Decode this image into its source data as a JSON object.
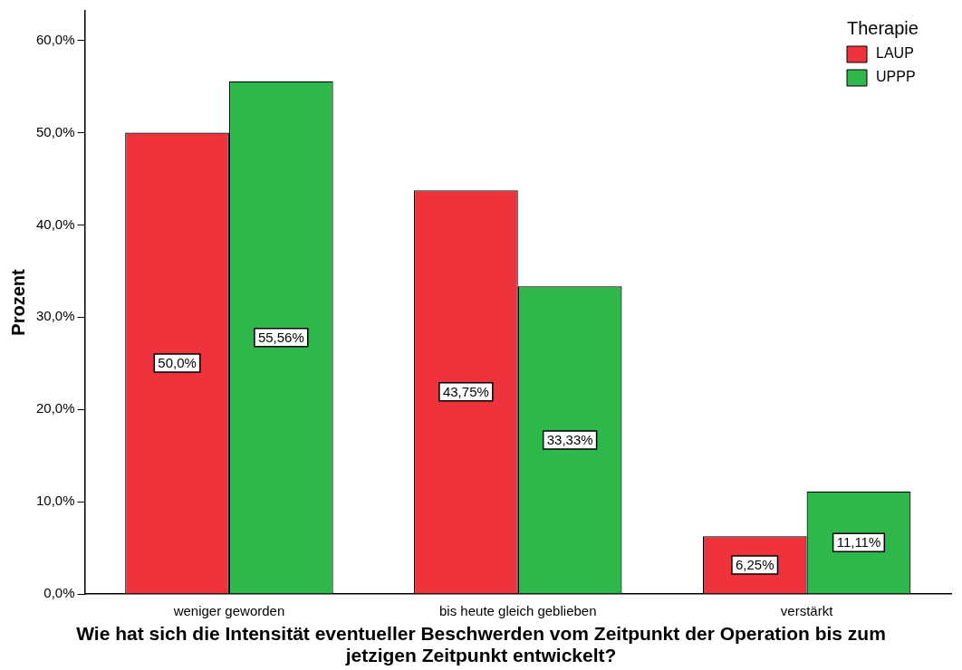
{
  "chart_data": {
    "type": "bar",
    "xlabel": "Wie hat sich die Intensität eventueller Beschwerden vom Zeitpunkt der Operation bis zum jetzigen Zeitpunkt entwickelt?",
    "ylabel": "Prozent",
    "legend_title": "Therapie",
    "legend": "top right",
    "categories": [
      "weniger geworden",
      "bis heute gleich geblieben",
      "verstärkt"
    ],
    "series": [
      {
        "name": "LAUP",
        "color": "#ef333c",
        "values": [
          50,
          43.75,
          6.25
        ],
        "value_labels": [
          "50,0%",
          "43,75%",
          "6,25%"
        ]
      },
      {
        "name": "UPPP",
        "color": "#2eb84b",
        "values": [
          55.56,
          33.33,
          11.11
        ],
        "value_labels": [
          "55,56%",
          "33,33%",
          "11,11%"
        ]
      }
    ],
    "ylim": [
      0,
      63.2
    ],
    "yticks": [
      {
        "value": 0,
        "label": "0,0%"
      },
      {
        "value": 10,
        "label": "10,0%"
      },
      {
        "value": 20,
        "label": "20,0%"
      },
      {
        "value": 30,
        "label": "30,0%"
      },
      {
        "value": 40,
        "label": "40,0%"
      },
      {
        "value": 50,
        "label": "50,0%"
      },
      {
        "value": 60,
        "label": "60,0%"
      }
    ],
    "grid": false
  }
}
